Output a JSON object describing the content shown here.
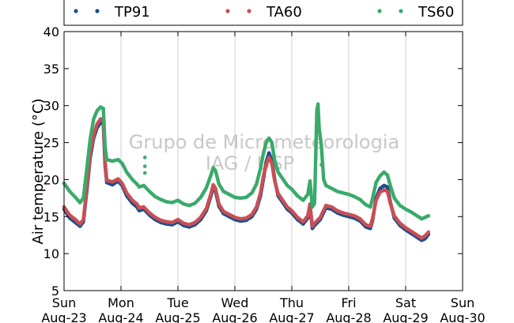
{
  "chart_data": {
    "type": "scatter",
    "title": "",
    "xlabel": "",
    "ylabel": "Air temperature (°C)",
    "watermark": [
      "Grupo de Micrometeorologia",
      "IAG / USP"
    ],
    "x_unit": "days from Sun Aug-23 00:00",
    "xlim": [
      0,
      7
    ],
    "ylim": [
      5,
      40
    ],
    "yticks": [
      5,
      10,
      15,
      20,
      25,
      30,
      35,
      40
    ],
    "xticks": [
      {
        "x": 0,
        "day": "Sun",
        "date": "Aug-23"
      },
      {
        "x": 1,
        "day": "Mon",
        "date": "Aug-24"
      },
      {
        "x": 2,
        "day": "Tue",
        "date": "Aug-25"
      },
      {
        "x": 3,
        "day": "Wed",
        "date": "Aug-26"
      },
      {
        "x": 4,
        "day": "Thu",
        "date": "Aug-27"
      },
      {
        "x": 5,
        "day": "Fri",
        "date": "Aug-28"
      },
      {
        "x": 6,
        "day": "Sat",
        "date": "Aug-29"
      },
      {
        "x": 7,
        "day": "Sun",
        "date": "Aug-30"
      }
    ],
    "grid": "vertical",
    "legend": "top",
    "series": [
      {
        "name": "TP91",
        "color": "#1f4e8c",
        "points": [
          [
            0.0,
            16.0
          ],
          [
            0.1,
            14.8
          ],
          [
            0.2,
            14.2
          ],
          [
            0.28,
            13.7
          ],
          [
            0.34,
            14.3
          ],
          [
            0.4,
            18.5
          ],
          [
            0.46,
            23.0
          ],
          [
            0.52,
            25.6
          ],
          [
            0.58,
            27.0
          ],
          [
            0.64,
            27.7
          ],
          [
            0.69,
            27.5
          ],
          [
            0.72,
            22.0
          ],
          [
            0.75,
            19.6
          ],
          [
            0.85,
            19.3
          ],
          [
            0.95,
            19.8
          ],
          [
            1.02,
            19.2
          ],
          [
            1.1,
            17.8
          ],
          [
            1.2,
            16.8
          ],
          [
            1.28,
            16.3
          ],
          [
            1.32,
            15.8
          ],
          [
            1.4,
            16.0
          ],
          [
            1.5,
            15.2
          ],
          [
            1.6,
            14.6
          ],
          [
            1.7,
            14.2
          ],
          [
            1.8,
            14.0
          ],
          [
            1.9,
            13.9
          ],
          [
            2.0,
            14.3
          ],
          [
            2.1,
            13.8
          ],
          [
            2.2,
            13.6
          ],
          [
            2.3,
            13.9
          ],
          [
            2.4,
            14.6
          ],
          [
            2.5,
            15.8
          ],
          [
            2.58,
            17.8
          ],
          [
            2.62,
            18.9
          ],
          [
            2.66,
            18.4
          ],
          [
            2.72,
            16.4
          ],
          [
            2.8,
            15.4
          ],
          [
            2.9,
            15.0
          ],
          [
            3.0,
            14.6
          ],
          [
            3.1,
            14.4
          ],
          [
            3.2,
            14.5
          ],
          [
            3.3,
            15.0
          ],
          [
            3.38,
            16.0
          ],
          [
            3.45,
            17.8
          ],
          [
            3.5,
            20.0
          ],
          [
            3.55,
            22.4
          ],
          [
            3.6,
            23.6
          ],
          [
            3.65,
            22.6
          ],
          [
            3.7,
            20.0
          ],
          [
            3.76,
            17.8
          ],
          [
            3.85,
            16.8
          ],
          [
            3.92,
            16.0
          ],
          [
            4.0,
            15.5
          ],
          [
            4.1,
            14.6
          ],
          [
            4.2,
            14.0
          ],
          [
            4.28,
            14.8
          ],
          [
            4.32,
            16.4
          ],
          [
            4.36,
            13.4
          ],
          [
            4.4,
            13.8
          ],
          [
            4.5,
            14.6
          ],
          [
            4.6,
            16.2
          ],
          [
            4.7,
            16.0
          ],
          [
            4.8,
            15.5
          ],
          [
            4.9,
            15.2
          ],
          [
            5.0,
            15.0
          ],
          [
            5.1,
            14.8
          ],
          [
            5.2,
            14.4
          ],
          [
            5.3,
            13.6
          ],
          [
            5.38,
            13.4
          ],
          [
            5.42,
            14.5
          ],
          [
            5.48,
            17.5
          ],
          [
            5.55,
            18.8
          ],
          [
            5.62,
            19.2
          ],
          [
            5.68,
            19.0
          ],
          [
            5.73,
            17.0
          ],
          [
            5.8,
            14.8
          ],
          [
            5.9,
            13.8
          ],
          [
            6.0,
            13.2
          ],
          [
            6.1,
            12.7
          ],
          [
            6.2,
            12.2
          ],
          [
            6.28,
            11.8
          ],
          [
            6.34,
            12.0
          ],
          [
            6.4,
            12.6
          ]
        ]
      },
      {
        "name": "TA60",
        "color": "#c94f55",
        "points": [
          [
            0.0,
            16.3
          ],
          [
            0.1,
            15.2
          ],
          [
            0.2,
            14.6
          ],
          [
            0.28,
            14.0
          ],
          [
            0.34,
            14.6
          ],
          [
            0.4,
            19.0
          ],
          [
            0.46,
            23.5
          ],
          [
            0.52,
            26.0
          ],
          [
            0.58,
            27.5
          ],
          [
            0.64,
            28.2
          ],
          [
            0.69,
            27.9
          ],
          [
            0.72,
            22.5
          ],
          [
            0.75,
            19.9
          ],
          [
            0.85,
            19.7
          ],
          [
            0.95,
            20.1
          ],
          [
            1.02,
            19.5
          ],
          [
            1.1,
            18.2
          ],
          [
            1.2,
            17.2
          ],
          [
            1.28,
            16.7
          ],
          [
            1.32,
            16.2
          ],
          [
            1.4,
            16.3
          ],
          [
            1.5,
            15.5
          ],
          [
            1.6,
            14.9
          ],
          [
            1.7,
            14.5
          ],
          [
            1.8,
            14.3
          ],
          [
            1.9,
            14.2
          ],
          [
            2.0,
            14.6
          ],
          [
            2.1,
            14.1
          ],
          [
            2.2,
            13.9
          ],
          [
            2.3,
            14.2
          ],
          [
            2.4,
            14.9
          ],
          [
            2.5,
            16.1
          ],
          [
            2.58,
            18.1
          ],
          [
            2.62,
            19.3
          ],
          [
            2.66,
            18.8
          ],
          [
            2.72,
            16.7
          ],
          [
            2.8,
            15.7
          ],
          [
            2.9,
            15.3
          ],
          [
            3.0,
            14.9
          ],
          [
            3.1,
            14.7
          ],
          [
            3.2,
            14.8
          ],
          [
            3.3,
            15.3
          ],
          [
            3.38,
            16.3
          ],
          [
            3.45,
            18.2
          ],
          [
            3.5,
            20.4
          ],
          [
            3.55,
            22.0
          ],
          [
            3.6,
            23.0
          ],
          [
            3.65,
            22.2
          ],
          [
            3.7,
            19.8
          ],
          [
            3.76,
            18.1
          ],
          [
            3.85,
            17.1
          ],
          [
            3.92,
            16.3
          ],
          [
            4.0,
            15.8
          ],
          [
            4.1,
            14.9
          ],
          [
            4.2,
            14.3
          ],
          [
            4.28,
            15.1
          ],
          [
            4.32,
            16.7
          ],
          [
            4.36,
            13.7
          ],
          [
            4.4,
            14.1
          ],
          [
            4.5,
            14.9
          ],
          [
            4.6,
            16.5
          ],
          [
            4.7,
            16.3
          ],
          [
            4.8,
            15.8
          ],
          [
            4.9,
            15.5
          ],
          [
            5.0,
            15.3
          ],
          [
            5.1,
            15.1
          ],
          [
            5.2,
            14.7
          ],
          [
            5.3,
            13.9
          ],
          [
            5.38,
            13.7
          ],
          [
            5.42,
            14.8
          ],
          [
            5.48,
            17.2
          ],
          [
            5.55,
            18.3
          ],
          [
            5.62,
            18.6
          ],
          [
            5.68,
            18.4
          ],
          [
            5.73,
            16.8
          ],
          [
            5.8,
            15.1
          ],
          [
            5.9,
            14.1
          ],
          [
            6.0,
            13.5
          ],
          [
            6.1,
            13.0
          ],
          [
            6.2,
            12.5
          ],
          [
            6.28,
            12.1
          ],
          [
            6.34,
            12.4
          ],
          [
            6.4,
            12.9
          ]
        ]
      },
      {
        "name": "TS60",
        "color": "#3aaa6a",
        "points": [
          [
            0.0,
            19.5
          ],
          [
            0.1,
            18.4
          ],
          [
            0.2,
            17.6
          ],
          [
            0.28,
            16.9
          ],
          [
            0.34,
            17.5
          ],
          [
            0.4,
            21.5
          ],
          [
            0.46,
            25.5
          ],
          [
            0.52,
            28.2
          ],
          [
            0.58,
            29.3
          ],
          [
            0.64,
            29.8
          ],
          [
            0.69,
            29.6
          ],
          [
            0.72,
            24.5
          ],
          [
            0.75,
            22.7
          ],
          [
            0.85,
            22.5
          ],
          [
            0.95,
            22.7
          ],
          [
            1.02,
            22.2
          ],
          [
            1.1,
            21.0
          ],
          [
            1.2,
            20.0
          ],
          [
            1.28,
            19.4
          ],
          [
            1.32,
            19.0
          ],
          [
            1.4,
            19.2
          ],
          [
            1.5,
            18.4
          ],
          [
            1.6,
            17.7
          ],
          [
            1.7,
            17.3
          ],
          [
            1.8,
            17.0
          ],
          [
            1.9,
            16.9
          ],
          [
            2.0,
            17.2
          ],
          [
            2.1,
            16.7
          ],
          [
            2.2,
            16.5
          ],
          [
            2.3,
            16.8
          ],
          [
            2.4,
            17.6
          ],
          [
            2.5,
            18.9
          ],
          [
            2.58,
            20.6
          ],
          [
            2.62,
            21.6
          ],
          [
            2.66,
            21.2
          ],
          [
            2.72,
            19.4
          ],
          [
            2.8,
            18.4
          ],
          [
            2.9,
            18.0
          ],
          [
            3.0,
            17.6
          ],
          [
            3.1,
            17.5
          ],
          [
            3.2,
            17.6
          ],
          [
            3.3,
            18.2
          ],
          [
            3.38,
            19.4
          ],
          [
            3.45,
            21.5
          ],
          [
            3.5,
            23.5
          ],
          [
            3.55,
            25.0
          ],
          [
            3.6,
            25.6
          ],
          [
            3.65,
            25.0
          ],
          [
            3.7,
            22.6
          ],
          [
            3.76,
            21.0
          ],
          [
            3.85,
            20.0
          ],
          [
            3.92,
            19.2
          ],
          [
            4.0,
            18.7
          ],
          [
            4.1,
            17.8
          ],
          [
            4.2,
            17.2
          ],
          [
            4.28,
            18.0
          ],
          [
            4.32,
            19.8
          ],
          [
            4.36,
            16.3
          ],
          [
            4.4,
            16.8
          ],
          [
            4.44,
            29.3
          ],
          [
            4.46,
            30.2
          ],
          [
            4.48,
            27.0
          ],
          [
            4.52,
            24.5
          ],
          [
            4.56,
            20.0
          ],
          [
            4.6,
            19.2
          ],
          [
            4.7,
            18.8
          ],
          [
            4.8,
            18.4
          ],
          [
            4.9,
            18.2
          ],
          [
            5.0,
            18.0
          ],
          [
            5.1,
            17.7
          ],
          [
            5.2,
            17.3
          ],
          [
            5.3,
            16.6
          ],
          [
            5.38,
            16.3
          ],
          [
            5.42,
            17.5
          ],
          [
            5.48,
            19.6
          ],
          [
            5.55,
            20.5
          ],
          [
            5.62,
            21.0
          ],
          [
            5.68,
            20.6
          ],
          [
            5.73,
            19.2
          ],
          [
            5.8,
            17.5
          ],
          [
            5.9,
            16.5
          ],
          [
            6.0,
            16.0
          ],
          [
            6.1,
            15.6
          ],
          [
            6.2,
            15.1
          ],
          [
            6.28,
            14.7
          ],
          [
            6.34,
            14.9
          ],
          [
            6.4,
            15.1
          ],
          [
            1.42,
            23.0
          ],
          [
            1.42,
            21.8
          ],
          [
            1.42,
            20.9
          ],
          [
            4.52,
            22.0
          ]
        ]
      }
    ]
  }
}
